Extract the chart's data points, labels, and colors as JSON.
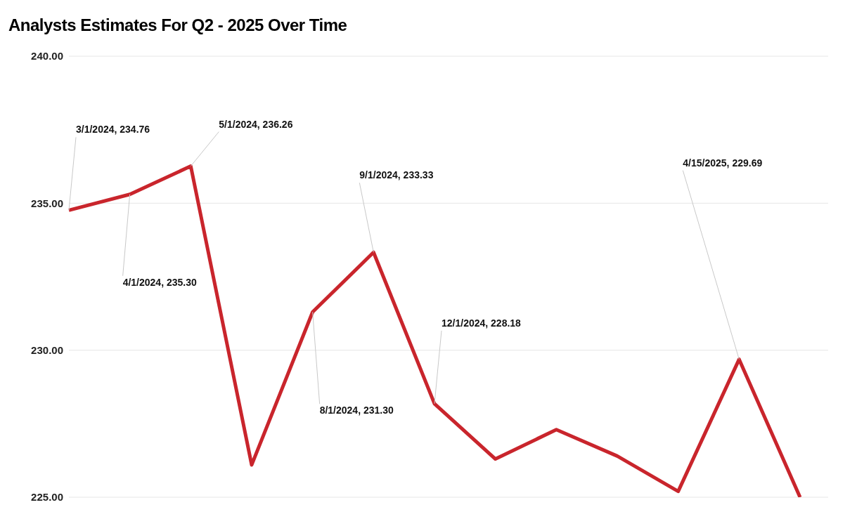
{
  "chart_data": {
    "type": "line",
    "title": "Analysts Estimates For Q2 - 2025 Over Time",
    "categories": [
      null,
      null,
      null,
      null,
      null,
      null,
      null,
      null,
      null,
      null,
      null,
      null,
      null
    ],
    "series": [
      {
        "color": "#c9252c",
        "values": [
          234.76,
          235.3,
          236.26,
          226.1,
          231.3,
          233.33,
          228.18,
          226.3,
          227.3,
          226.4,
          225.2,
          229.69,
          225.0
        ],
        "value_labels": [
          "3/1/2024,  234.76",
          "4/1/2024,  235.30",
          "5/1/2024,  236.26",
          null,
          "8/1/2024,  231.30",
          "9/1/2024,  233.33",
          "12/1/2024,  228.18",
          null,
          null,
          null,
          null,
          "4/15/2025,  229.69",
          null
        ]
      }
    ],
    "ylim": [
      225,
      240
    ],
    "yticks": [
      {
        "value": 225,
        "label": "225.00"
      },
      {
        "value": 230,
        "label": "230.00"
      },
      {
        "value": 235,
        "label": "235.00"
      },
      {
        "value": 240,
        "label": "240.00"
      }
    ],
    "tick_labels": "y",
    "grid": "y",
    "marker": "none",
    "line_style": "solid",
    "legend": false
  }
}
